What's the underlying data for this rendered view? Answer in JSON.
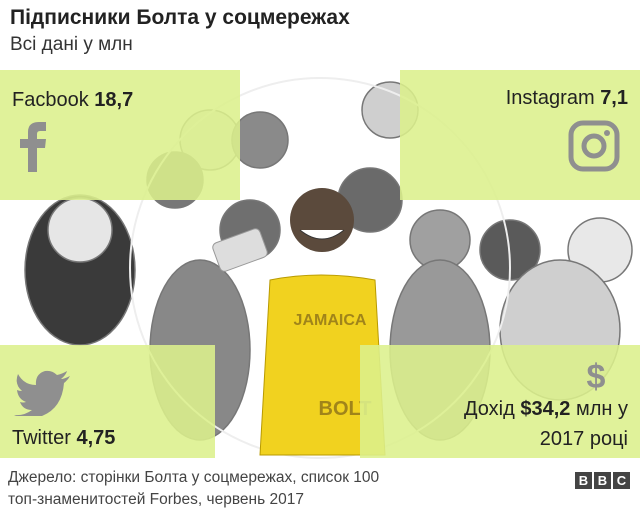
{
  "header": {
    "title": "Підписники Болта у соцмережах",
    "subtitle": "Всі дані у млн"
  },
  "panels": [
    {
      "label": "Facbook",
      "value": "18,7"
    },
    {
      "label": "Instagram",
      "value": "7,1"
    },
    {
      "label": "Twitter",
      "value": "4,75"
    },
    {
      "label": "Дохід",
      "value": "$34,2",
      "suffix": "млн у",
      "line2": "2017 році"
    }
  ],
  "footer": {
    "line1": "Джерело: сторінки Болта у соцмережах, список 100",
    "line2": "топ-знаменитостей Forbes, червень 2017",
    "logo": [
      "B",
      "B",
      "C"
    ]
  }
}
